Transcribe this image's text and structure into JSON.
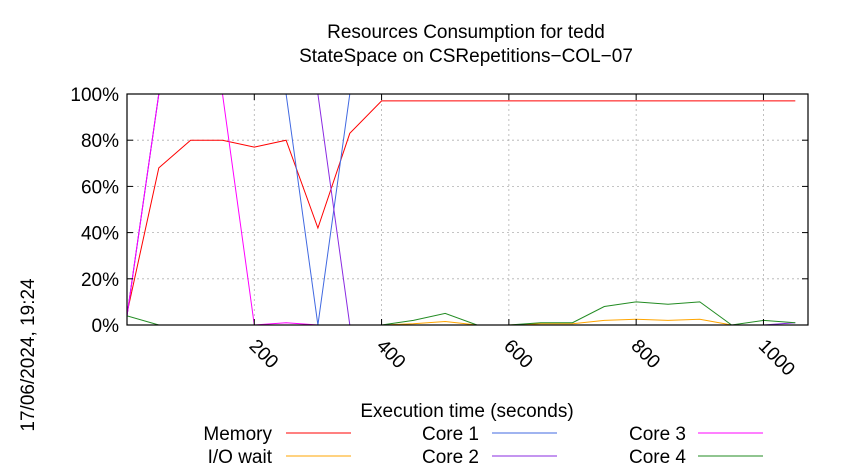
{
  "chart_data": {
    "type": "line",
    "title": "Resources Consumption for tedd",
    "subtitle": "StateSpace on CSRepetitions−COL−07",
    "xlabel": "Execution time (seconds)",
    "ylabel": "",
    "xlim": [
      0,
      1070
    ],
    "ylim": [
      0,
      100
    ],
    "x_ticks": [
      200,
      400,
      600,
      800,
      1000
    ],
    "x_tick_labels": [
      "200",
      "400",
      "600",
      "800",
      "1000"
    ],
    "y_ticks": [
      0,
      20,
      40,
      60,
      80,
      100
    ],
    "y_tick_labels": [
      "0%",
      "20%",
      "40%",
      "60%",
      "80%",
      "100%"
    ],
    "grid": true,
    "legend_position": "bottom",
    "timestamp": "17/06/2024, 19:24",
    "series": [
      {
        "name": "Memory",
        "color": "#ff0000",
        "points": [
          [
            0,
            5
          ],
          [
            50,
            68
          ],
          [
            100,
            80
          ],
          [
            150,
            80
          ],
          [
            200,
            77
          ],
          [
            250,
            80
          ],
          [
            300,
            42
          ],
          [
            350,
            83
          ],
          [
            400,
            97
          ],
          [
            1050,
            97
          ]
        ]
      },
      {
        "name": "I/O wait",
        "color": "#ffa500",
        "points": [
          [
            400,
            0
          ],
          [
            450,
            0.5
          ],
          [
            500,
            1.5
          ],
          [
            550,
            0
          ],
          [
            600,
            0
          ],
          [
            650,
            0.5
          ],
          [
            700,
            0.5
          ],
          [
            750,
            2
          ],
          [
            800,
            2.5
          ],
          [
            850,
            2
          ],
          [
            900,
            2.5
          ],
          [
            950,
            0
          ],
          [
            1000,
            0
          ],
          [
            1050,
            0
          ]
        ]
      },
      {
        "name": "Core 1",
        "color": "#4169e1",
        "points": [
          [
            0,
            4
          ],
          [
            50,
            100
          ],
          [
            250,
            100
          ],
          [
            300,
            0
          ],
          [
            350,
            100
          ],
          [
            1050,
            100
          ]
        ]
      },
      {
        "name": "Core 2",
        "color": "#8a2be2",
        "points": [
          [
            0,
            4
          ],
          [
            50,
            100
          ],
          [
            100,
            100
          ],
          [
            150,
            100
          ],
          [
            200,
            100
          ],
          [
            250,
            100
          ],
          [
            300,
            100
          ],
          [
            350,
            0
          ],
          [
            1000,
            0
          ],
          [
            1050,
            1
          ]
        ]
      },
      {
        "name": "Core 3",
        "color": "#ff00ff",
        "points": [
          [
            0,
            4
          ],
          [
            50,
            100
          ],
          [
            150,
            100
          ],
          [
            200,
            0
          ],
          [
            250,
            1
          ],
          [
            300,
            0
          ],
          [
            350,
            0
          ]
        ]
      },
      {
        "name": "Core 4",
        "color": "#228b22",
        "points": [
          [
            0,
            4
          ],
          [
            50,
            0
          ],
          [
            350,
            0
          ],
          [
            400,
            0
          ],
          [
            450,
            2
          ],
          [
            500,
            5
          ],
          [
            550,
            0
          ],
          [
            600,
            0
          ],
          [
            650,
            1
          ],
          [
            700,
            1
          ],
          [
            750,
            8
          ],
          [
            800,
            10
          ],
          [
            850,
            9
          ],
          [
            900,
            10
          ],
          [
            950,
            0
          ],
          [
            1000,
            2
          ],
          [
            1050,
            1
          ]
        ]
      }
    ]
  }
}
